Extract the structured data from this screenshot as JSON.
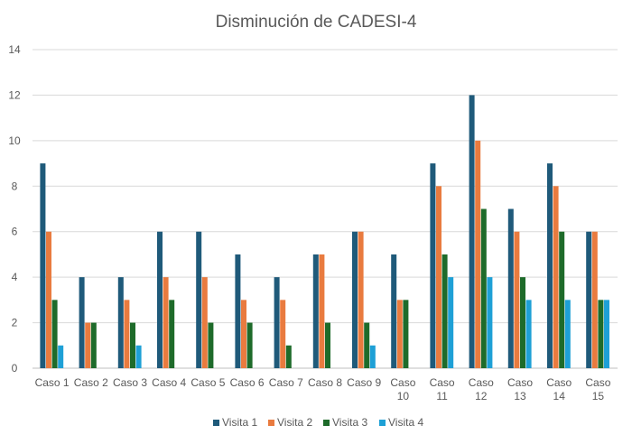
{
  "chart_data": {
    "type": "bar",
    "title": "Disminución de  CADESI-4",
    "xlabel": "",
    "ylabel": "",
    "ylim": [
      0,
      14
    ],
    "yticks": [
      0,
      2,
      4,
      6,
      8,
      10,
      12,
      14
    ],
    "grid": "horizontal",
    "legend": "bottom",
    "categories": [
      [
        "Caso 1"
      ],
      [
        "Caso 2"
      ],
      [
        "Caso 3"
      ],
      [
        "Caso 4"
      ],
      [
        "Caso 5"
      ],
      [
        "Caso 6"
      ],
      [
        "Caso 7"
      ],
      [
        "Caso 8"
      ],
      [
        "Caso 9"
      ],
      [
        "Caso",
        "10"
      ],
      [
        "Caso",
        "11"
      ],
      [
        "Caso",
        "12"
      ],
      [
        "Caso",
        "13"
      ],
      [
        "Caso",
        "14"
      ],
      [
        "Caso",
        "15"
      ]
    ],
    "series": [
      {
        "name": "Visita 1",
        "color": "#1f5a7a",
        "values": [
          9,
          4,
          4,
          6,
          6,
          5,
          4,
          5,
          6,
          5,
          9,
          12,
          7,
          9,
          6
        ]
      },
      {
        "name": "Visita 2",
        "color": "#e97b3f",
        "values": [
          6,
          2,
          3,
          4,
          4,
          3,
          3,
          5,
          6,
          3,
          8,
          10,
          6,
          8,
          6
        ]
      },
      {
        "name": "Visita 3",
        "color": "#1e6b2a",
        "values": [
          3,
          2,
          2,
          3,
          2,
          2,
          1,
          2,
          2,
          3,
          5,
          7,
          4,
          6,
          3
        ]
      },
      {
        "name": "Visita 4",
        "color": "#1ea0d6",
        "values": [
          1,
          null,
          1,
          null,
          null,
          null,
          null,
          null,
          1,
          null,
          4,
          4,
          3,
          3,
          3
        ]
      }
    ]
  }
}
